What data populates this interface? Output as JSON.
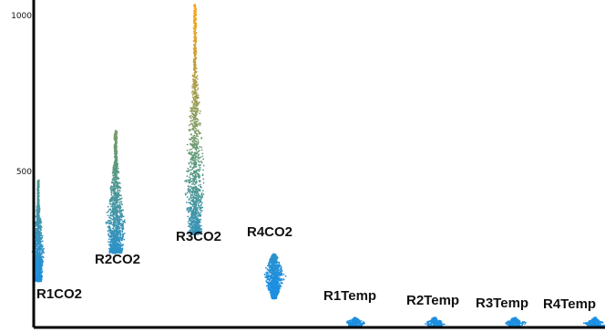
{
  "chart_data": {
    "type": "scatter",
    "title": "",
    "xlabel": "",
    "ylabel": "",
    "ylim": [
      0,
      1050
    ],
    "y_ticks": [
      {
        "value": 500,
        "label": "500"
      },
      {
        "value": 1000,
        "label": "1000"
      }
    ],
    "grid": false,
    "groups": [
      {
        "name": "R1CO2",
        "min": 150,
        "max": 470,
        "median": 235
      },
      {
        "name": "R2CO2",
        "min": 240,
        "max": 630,
        "median": 330
      },
      {
        "name": "R3CO2",
        "min": 300,
        "max": 1035,
        "median": 470
      },
      {
        "name": "R4CO2",
        "min": 95,
        "max": 235,
        "median": 165
      },
      {
        "name": "R1Temp",
        "min": 0,
        "max": 30,
        "median": 12
      },
      {
        "name": "R2Temp",
        "min": 0,
        "max": 30,
        "median": 12
      },
      {
        "name": "R3Temp",
        "min": 0,
        "max": 30,
        "median": 12
      },
      {
        "name": "R4Temp",
        "min": 0,
        "max": 30,
        "median": 12
      }
    ],
    "colors": {
      "low": "#1e8fe0",
      "mid": "#5e9a7c",
      "high": "#f4a41c",
      "axis": "#000000"
    }
  }
}
